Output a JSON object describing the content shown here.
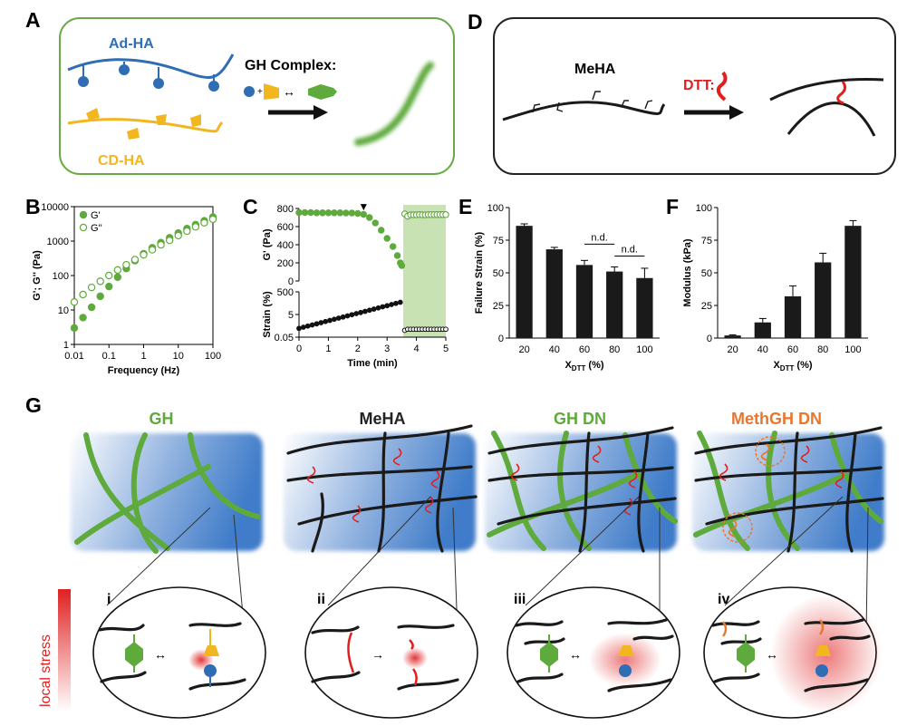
{
  "panels": {
    "a": {
      "label": "A",
      "adha": "Ad-HA",
      "cdha": "CD-HA",
      "complex": "GH Complex:"
    },
    "d": {
      "label": "D",
      "meha": "MeHA",
      "dtt": "DTT:"
    },
    "b": {
      "label": "B"
    },
    "c": {
      "label": "C"
    },
    "e": {
      "label": "E"
    },
    "f": {
      "label": "F"
    },
    "g": {
      "label": "G",
      "titles": [
        "GH",
        "MeHA",
        "GH DN",
        "MethGH DN"
      ],
      "roman": [
        "i",
        "ii",
        "iii",
        "iv"
      ],
      "stress": "local stress"
    }
  },
  "colors": {
    "green": "#5faa3c",
    "blue": "#2f6db5",
    "yellow": "#f2b61f",
    "red": "#e02020",
    "orange": "#e8772e"
  },
  "chart_data": [
    {
      "id": "B",
      "type": "scatter",
      "xlabel": "Frequency (Hz)",
      "ylabel": "G'; G'' (Pa)",
      "xscale": "log",
      "yscale": "log",
      "xlim": [
        0.01,
        100
      ],
      "ylim": [
        1,
        10000
      ],
      "xticks": [
        "0.01",
        "0.1",
        "1",
        "10",
        "100"
      ],
      "yticks": [
        "1",
        "10",
        "100",
        "1000",
        "10000"
      ],
      "legend": [
        "G'",
        "G''"
      ],
      "series": [
        {
          "name": "G'",
          "style": "filled",
          "x": [
            0.01,
            0.0178,
            0.0316,
            0.0562,
            0.1,
            0.178,
            0.316,
            0.562,
            1,
            1.78,
            3.16,
            5.62,
            10,
            17.8,
            31.6,
            56.2,
            100
          ],
          "y": [
            3,
            6,
            12,
            25,
            48,
            90,
            160,
            270,
            430,
            640,
            900,
            1250,
            1700,
            2300,
            3000,
            3900,
            5000
          ]
        },
        {
          "name": "G''",
          "style": "open",
          "x": [
            0.01,
            0.0178,
            0.0316,
            0.0562,
            0.1,
            0.178,
            0.316,
            0.562,
            1,
            1.78,
            3.16,
            5.62,
            10,
            17.8,
            31.6,
            56.2,
            100
          ],
          "y": [
            17,
            28,
            45,
            68,
            100,
            145,
            205,
            290,
            400,
            560,
            780,
            1050,
            1450,
            1950,
            2600,
            3400,
            4300
          ]
        }
      ]
    },
    {
      "id": "C-top",
      "type": "scatter",
      "xlabel": "Time (min)",
      "ylabel": "G' (Pa)",
      "xlim": [
        0,
        5
      ],
      "ylim": [
        0,
        800
      ],
      "xticks": [
        "0",
        "1",
        "2",
        "3",
        "4",
        "5"
      ],
      "yticks": [
        "0",
        "200",
        "400",
        "600",
        "800"
      ],
      "shaded_range": [
        3.55,
        5
      ],
      "annotation": "▼",
      "annotation_x": 2.2,
      "series": [
        {
          "name": "G' before recovery",
          "style": "filled",
          "x": [
            0,
            0.2,
            0.4,
            0.6,
            0.8,
            1.0,
            1.2,
            1.4,
            1.6,
            1.8,
            2.0,
            2.2,
            2.4,
            2.6,
            2.8,
            3.0,
            3.2,
            3.35,
            3.45,
            3.5
          ],
          "y": [
            755,
            755,
            755,
            752,
            752,
            752,
            752,
            752,
            750,
            750,
            745,
            735,
            700,
            640,
            560,
            470,
            380,
            280,
            200,
            170
          ]
        },
        {
          "name": "G' recovery",
          "style": "open",
          "x": [
            3.6,
            3.7,
            3.8,
            3.9,
            4.0,
            4.1,
            4.2,
            4.3,
            4.4,
            4.5,
            4.6,
            4.7,
            4.8,
            4.9,
            5.0
          ],
          "y": [
            740,
            715,
            730,
            730,
            730,
            732,
            730,
            730,
            732,
            732,
            732,
            732,
            732,
            732,
            732
          ]
        }
      ]
    },
    {
      "id": "C-bottom",
      "type": "scatter",
      "ylabel": "Strain (%)",
      "yscale": "log",
      "xlim": [
        0,
        5
      ],
      "ylim": [
        0.05,
        500
      ],
      "yticks": [
        "0.05",
        "5",
        "500"
      ],
      "series": [
        {
          "name": "strain ramp",
          "style": "filled",
          "x": [
            0,
            0.15,
            0.3,
            0.45,
            0.6,
            0.75,
            0.9,
            1.05,
            1.2,
            1.35,
            1.5,
            1.65,
            1.8,
            1.95,
            2.1,
            2.25,
            2.4,
            2.55,
            2.7,
            2.85,
            3.0,
            3.15,
            3.3,
            3.45
          ],
          "y": [
            0.3,
            0.38,
            0.48,
            0.6,
            0.75,
            0.95,
            1.2,
            1.5,
            1.9,
            2.4,
            3.0,
            3.8,
            4.8,
            6.0,
            7.5,
            9.5,
            12,
            15,
            19,
            24,
            30,
            38,
            48,
            60
          ]
        },
        {
          "name": "strain recovery",
          "style": "open",
          "x": [
            3.6,
            3.7,
            3.8,
            3.9,
            4.0,
            4.1,
            4.2,
            4.3,
            4.4,
            4.5,
            4.6,
            4.7,
            4.8,
            4.9,
            5.0
          ],
          "y": [
            0.2,
            0.25,
            0.25,
            0.25,
            0.25,
            0.25,
            0.25,
            0.25,
            0.25,
            0.25,
            0.25,
            0.25,
            0.25,
            0.25,
            0.25
          ]
        }
      ]
    },
    {
      "id": "E",
      "type": "bar",
      "xlabel": "X",
      "xlabel_sub": "DTT",
      "xlabel_tail": " (%)",
      "ylabel": "Failure Strain (%)",
      "categories": [
        "20",
        "40",
        "60",
        "80",
        "100"
      ],
      "values": [
        86,
        68,
        56,
        51,
        46
      ],
      "errors": [
        1.5,
        1.5,
        3.5,
        3.5,
        7.5
      ],
      "ylim": [
        0,
        100
      ],
      "yticks": [
        "0",
        "25",
        "50",
        "75",
        "100"
      ],
      "annotations": [
        {
          "text": "n.d.",
          "from": "60",
          "to": "80"
        },
        {
          "text": "n.d.",
          "from": "80",
          "to": "100"
        }
      ]
    },
    {
      "id": "F",
      "type": "bar",
      "xlabel": "X",
      "xlabel_sub": "DTT",
      "xlabel_tail": " (%)",
      "ylabel": "Modulus (kPa)",
      "categories": [
        "20",
        "40",
        "60",
        "80",
        "100"
      ],
      "values": [
        2,
        12,
        32,
        58,
        86
      ],
      "errors": [
        0.5,
        3,
        8,
        7,
        4
      ],
      "ylim": [
        0,
        100
      ],
      "yticks": [
        "0",
        "25",
        "50",
        "75",
        "100"
      ]
    }
  ]
}
